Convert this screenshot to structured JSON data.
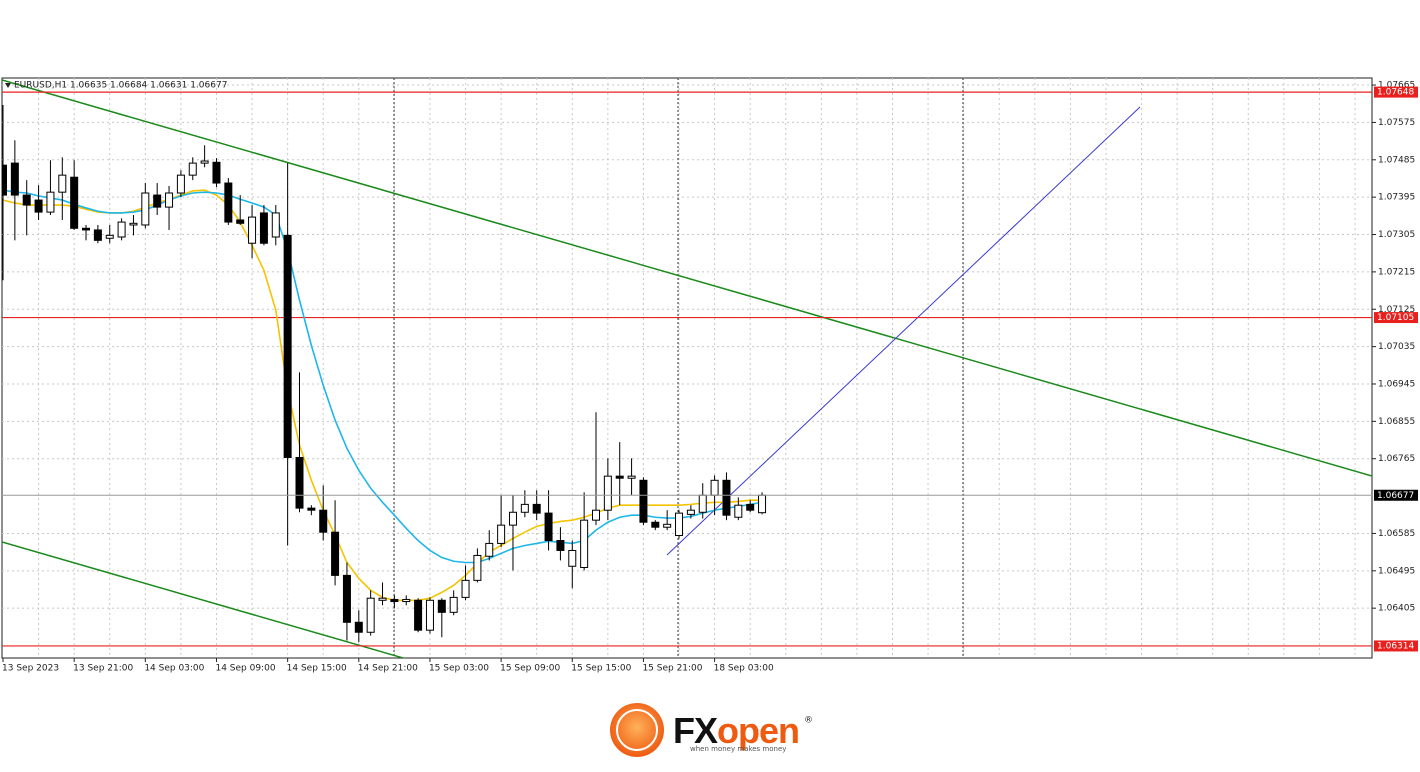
{
  "chart_data": {
    "type": "candlestick",
    "header": "EURUSD,H1 1.06635 1.06684 1.06631 1.06677",
    "x": [
      "13 Sep 2023",
      null,
      null,
      null,
      null,
      null,
      "13 Sep 21:00",
      null,
      null,
      null,
      null,
      null,
      "14 Sep 03:00",
      null,
      null,
      null,
      null,
      null,
      "14 Sep 09:00",
      null,
      null,
      null,
      null,
      null,
      "14 Sep 15:00",
      null,
      null,
      null,
      null,
      null,
      "14 Sep 21:00",
      null,
      null,
      null,
      null,
      null,
      "15 Sep 03:00",
      null,
      null,
      null,
      null,
      null,
      "15 Sep 09:00",
      null,
      null,
      null,
      null,
      null,
      "15 Sep 15:00",
      null,
      null,
      null,
      null,
      null,
      "15 Sep 21:00",
      null,
      null,
      null,
      null,
      null,
      "18 Sep 03:00",
      null,
      null,
      null,
      null
    ],
    "open": [
      1.07472,
      1.07477,
      1.074,
      1.07388,
      1.07359,
      1.07407,
      1.07443,
      1.0732,
      1.07316,
      1.07296,
      1.07299,
      1.07328,
      1.07328,
      1.074,
      1.07371,
      1.07405,
      1.07448,
      1.07477,
      1.07479,
      1.07429,
      1.0734,
      1.07284,
      1.07357,
      1.07299,
      1.07303,
      1.06768,
      1.06646,
      1.06641,
      1.06588,
      1.06484,
      1.06371,
      1.06347,
      1.06424,
      1.06426,
      1.06421,
      1.06424,
      1.06352,
      1.06424,
      1.06395,
      1.06431,
      1.06472,
      1.0653,
      1.06561,
      1.06605,
      1.06636,
      1.06655,
      1.06634,
      1.06568,
      1.06506,
      1.06503,
      1.06617,
      1.06641,
      1.06723,
      1.06718,
      1.06713,
      1.06612,
      1.066,
      1.0658,
      1.06631,
      1.06636,
      1.06677,
      1.06713,
      1.06624,
      1.06655,
      1.06635
    ],
    "high": [
      1.07617,
      1.07532,
      1.07436,
      1.07424,
      1.07484,
      1.07491,
      1.07484,
      1.07328,
      1.07328,
      1.07328,
      1.07344,
      1.07352,
      1.07429,
      1.07429,
      1.07422,
      1.0746,
      1.07491,
      1.0752,
      1.07489,
      1.07441,
      1.074,
      1.07376,
      1.07376,
      1.07376,
      1.07477,
      1.06973,
      1.06653,
      1.06701,
      1.06665,
      1.06515,
      1.064,
      1.06448,
      1.06467,
      1.06436,
      1.06436,
      1.06429,
      1.06431,
      1.06429,
      1.06448,
      1.06508,
      1.06549,
      1.06593,
      1.06677,
      1.06677,
      1.06689,
      1.06689,
      1.06689,
      1.066,
      1.06568,
      1.06684,
      1.06877,
      1.06766,
      1.06805,
      1.06766,
      1.0672,
      1.06617,
      1.06641,
      1.06641,
      1.06653,
      1.06706,
      1.06725,
      1.06732,
      1.06672,
      1.06665,
      1.06684
    ],
    "low": [
      1.07195,
      1.07291,
      1.07303,
      1.0734,
      1.07352,
      1.0734,
      1.07316,
      1.07291,
      1.07284,
      1.07284,
      1.07291,
      1.07303,
      1.0732,
      1.07352,
      1.07316,
      1.07395,
      1.07436,
      1.07467,
      1.07419,
      1.07328,
      1.07328,
      1.07248,
      1.07279,
      1.07279,
      1.06556,
      1.06636,
      1.06629,
      1.06568,
      1.0646,
      1.06327,
      1.06323,
      1.06339,
      1.06412,
      1.06405,
      1.06412,
      1.06347,
      1.06344,
      1.06335,
      1.06388,
      1.06424,
      1.06467,
      1.0652,
      1.06552,
      1.06496,
      1.06624,
      1.06617,
      1.06544,
      1.0652,
      1.06453,
      1.06496,
      1.06605,
      1.06617,
      1.06653,
      1.06677,
      1.06605,
      1.06593,
      1.06593,
      1.06573,
      1.06621,
      1.06621,
      1.06629,
      1.06617,
      1.06617,
      1.06636,
      1.06631
    ],
    "close": [
      1.074,
      1.074,
      1.07376,
      1.07359,
      1.07407,
      1.07448,
      1.0732,
      1.07316,
      1.07291,
      1.07303,
      1.07335,
      1.07332,
      1.07405,
      1.07371,
      1.07405,
      1.07448,
      1.07477,
      1.07482,
      1.07429,
      1.07335,
      1.07332,
      1.07347,
      1.07284,
      1.07357,
      1.06768,
      1.06646,
      1.06641,
      1.06588,
      1.06484,
      1.06371,
      1.06347,
      1.06429,
      1.06429,
      1.06421,
      1.06426,
      1.06352,
      1.06424,
      1.06395,
      1.06431,
      1.06472,
      1.06532,
      1.06561,
      1.06605,
      1.06636,
      1.06655,
      1.06634,
      1.06568,
      1.06544,
      1.06544,
      1.06617,
      1.06641,
      1.06723,
      1.06718,
      1.06723,
      1.06612,
      1.066,
      1.06607,
      1.06634,
      1.06641,
      1.06677,
      1.06713,
      1.06629,
      1.06653,
      1.06641,
      1.06677
    ],
    "up_color": "#ffffff",
    "down_color": "#000000",
    "lines": [
      {
        "color": "#f5c400",
        "values": [
          1.07388,
          1.07381,
          1.07376,
          1.07376,
          1.07376,
          1.07376,
          1.07373,
          1.07366,
          1.07359,
          1.07357,
          1.07357,
          1.07361,
          1.07371,
          1.07381,
          1.0739,
          1.074,
          1.0741,
          1.07412,
          1.074,
          1.07376,
          1.07335,
          1.07279,
          1.07219,
          1.07123,
          1.0693,
          1.06798,
          1.06713,
          1.06641,
          1.06581,
          1.06515,
          1.06477,
          1.06448,
          1.06431,
          1.06424,
          1.06424,
          1.06424,
          1.06429,
          1.06443,
          1.0646,
          1.06484,
          1.06513,
          1.0654,
          1.06556,
          1.06573,
          1.06588,
          1.06602,
          1.06609,
          1.06614,
          1.06617,
          1.06624,
          1.06634,
          1.06646,
          1.06653,
          1.06653,
          1.06653,
          1.06653,
          1.06653,
          1.06653,
          1.06655,
          1.06658,
          1.0666,
          1.0666,
          1.06662,
          1.06665,
          1.06665
        ]
      },
      {
        "color": "#1fb7e8",
        "values": [
          1.07412,
          1.07407,
          1.07405,
          1.07398,
          1.07393,
          1.07388,
          1.07378,
          1.07369,
          1.07361,
          1.07357,
          1.07357,
          1.07359,
          1.07364,
          1.07376,
          1.07388,
          1.07398,
          1.07405,
          1.07407,
          1.07405,
          1.074,
          1.0739,
          1.07381,
          1.07371,
          1.07352,
          1.07267,
          1.07147,
          1.07038,
          1.06942,
          1.06858,
          1.0679,
          1.06737,
          1.06694,
          1.0666,
          1.06629,
          1.06597,
          1.06568,
          1.06544,
          1.06527,
          1.06518,
          1.06515,
          1.06515,
          1.06525,
          1.06537,
          1.06549,
          1.06556,
          1.06561,
          1.06566,
          1.06564,
          1.06561,
          1.06568,
          1.06593,
          1.06612,
          1.06624,
          1.06629,
          1.06629,
          1.06624,
          1.06622,
          1.06622,
          1.06626,
          1.06634,
          1.06641,
          1.06646,
          1.0665,
          1.06655,
          1.0666
        ]
      }
    ],
    "levels": [
      1.07648,
      1.07105,
      1.06314
    ],
    "level_color": "#e8211f",
    "ylim": [
      1.06285,
      1.07682
    ],
    "yticks": [
      1.07665,
      1.07575,
      1.07485,
      1.07395,
      1.07305,
      1.07215,
      1.07125,
      1.07035,
      1.06945,
      1.06855,
      1.06765,
      1.06585,
      1.06495,
      1.06405
    ],
    "grid": true
  },
  "footer": {
    "brand_1": "FX",
    "brand_2": "open",
    "registered": "®",
    "tagline": "when money makes money"
  }
}
